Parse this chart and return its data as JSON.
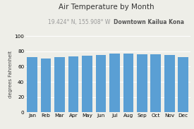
{
  "title": "Air Temperature by Month",
  "subtitle_coords": "19.424° N, 155.908° W",
  "subtitle_location": "Downtown Kailua Kona",
  "ylabel": "degrees Fahrenheit",
  "months": [
    "Jan",
    "Feb",
    "Mar",
    "Apr",
    "May",
    "Jun",
    "Jul",
    "Aug",
    "Sep",
    "Oct",
    "Nov",
    "Dec"
  ],
  "values": [
    72,
    71,
    72,
    73.5,
    74.5,
    75.5,
    77,
    77.5,
    76.5,
    76.5,
    75,
    72.5
  ],
  "bar_color": "#5a9fd4",
  "ylim": [
    0,
    100
  ],
  "yticks": [
    0,
    20,
    40,
    60,
    80,
    100
  ],
  "background_color": "#eeeee8",
  "grid_color": "#ffffff",
  "title_fontsize": 7.5,
  "subtitle_fontsize": 5.5,
  "ylabel_fontsize": 5.0,
  "tick_fontsize": 5.2
}
